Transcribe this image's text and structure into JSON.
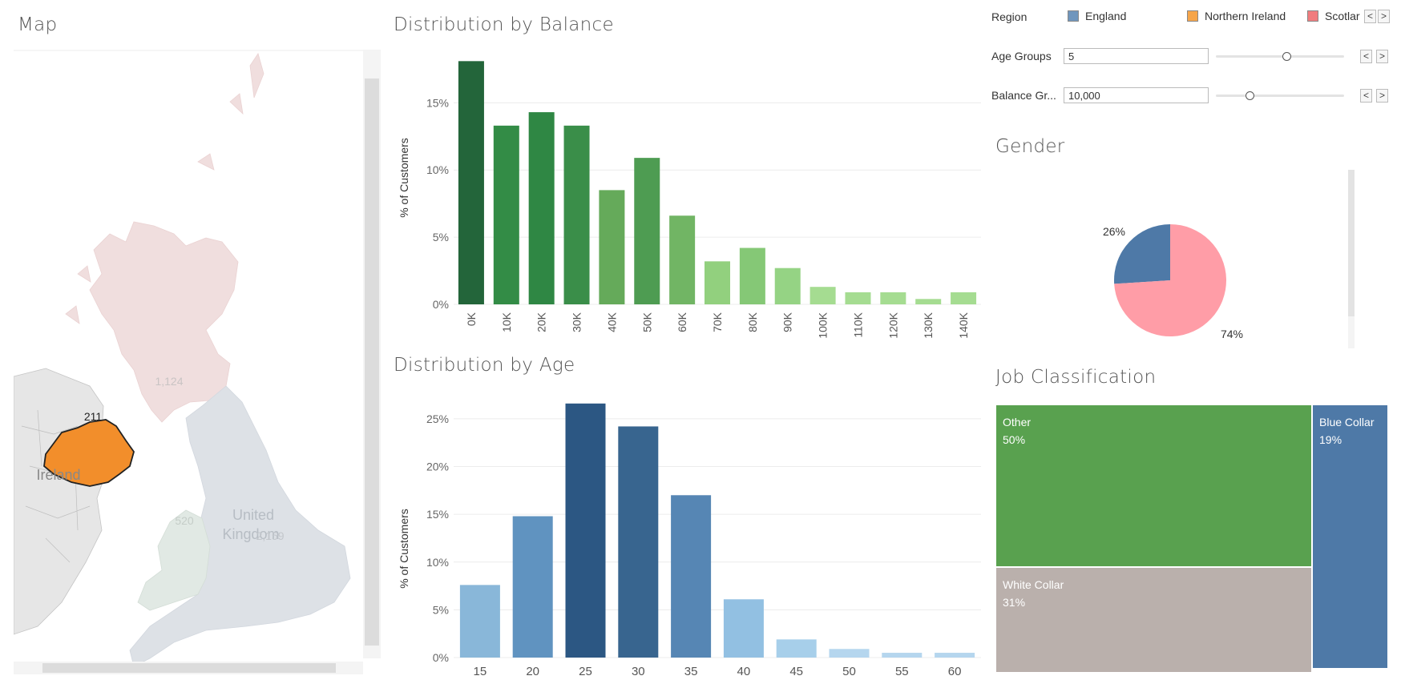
{
  "map": {
    "title": "Map",
    "labels": {
      "scotland": "1,124",
      "northern_ireland": "211",
      "wales": "520",
      "england": "2,159",
      "ireland": "Ireland",
      "uk_line1": "United",
      "uk_line2": "Kingdom"
    },
    "colors": {
      "highlight": "#f28e2b",
      "muted_scotland": "#f0dede",
      "muted_england": "#dde1e6",
      "muted_wales": "#e1e9e4",
      "land": "#e8e8e8"
    }
  },
  "controls": {
    "region_label": "Region",
    "legend": [
      {
        "label": "England",
        "color": "#7096bd"
      },
      {
        "label": "Northern Ireland",
        "color": "#f6a54a"
      },
      {
        "label": "Scotlar",
        "color": "#f07c7e"
      }
    ],
    "age_groups": {
      "label": "Age Groups",
      "value": "5",
      "level": 0.55
    },
    "balance_groups": {
      "label": "Balance Gr...",
      "value": "10,000",
      "level": 0.26
    },
    "prev_icon": "<",
    "next_icon": ">"
  },
  "balance_chart": {
    "title": "Distribution by Balance",
    "ylabel": "% of Customers",
    "yticks": [
      "0%",
      "5%",
      "10%",
      "15%"
    ]
  },
  "age_chart": {
    "title": "Distribution by Age",
    "ylabel": "% of Customers",
    "yticks": [
      "0%",
      "5%",
      "10%",
      "15%",
      "20%",
      "25%"
    ]
  },
  "gender": {
    "title": "Gender",
    "slices": [
      {
        "label": "26%",
        "value": 26,
        "color": "#4e79a7"
      },
      {
        "label": "74%",
        "value": 74,
        "color": "#ff9da7"
      }
    ]
  },
  "job": {
    "title": "Job Classification",
    "cells": [
      {
        "name": "Other",
        "pct": "50%",
        "color": "#59a14f"
      },
      {
        "name": "White Collar",
        "pct": "31%",
        "color": "#bab0ac"
      },
      {
        "name": "Blue Collar",
        "pct": "19%",
        "color": "#4e79a7"
      }
    ]
  },
  "chart_data": [
    {
      "type": "bar",
      "title": "Distribution by Balance",
      "xlabel": "",
      "ylabel": "% of Customers",
      "ylim": [
        0,
        18
      ],
      "categories": [
        "0K",
        "10K",
        "20K",
        "30K",
        "40K",
        "50K",
        "60K",
        "70K",
        "80K",
        "90K",
        "100K",
        "110K",
        "120K",
        "130K",
        "140K"
      ],
      "values": [
        18.1,
        13.3,
        14.3,
        13.3,
        8.5,
        10.9,
        6.6,
        3.2,
        4.2,
        2.7,
        1.3,
        0.9,
        0.9,
        0.4,
        0.9
      ],
      "colors": [
        "#23653a",
        "#338c46",
        "#2f8744",
        "#3a8e49",
        "#65aa5a",
        "#4e9c52",
        "#71b564",
        "#92d07e",
        "#85c876",
        "#95d384",
        "#a5dc91",
        "#a5dc91",
        "#a5dc91",
        "#a5dc91",
        "#a5dc91"
      ],
      "grid": true
    },
    {
      "type": "bar",
      "title": "Distribution by Age",
      "xlabel": "",
      "ylabel": "% of Customers",
      "ylim": [
        0,
        26.5
      ],
      "categories": [
        "15",
        "20",
        "25",
        "30",
        "35",
        "40",
        "45",
        "50",
        "55",
        "60"
      ],
      "values": [
        7.6,
        14.8,
        26.6,
        24.2,
        17.0,
        6.1,
        1.9,
        0.9,
        0.5,
        0.5
      ],
      "colors": [
        "#89b7d9",
        "#6093c0",
        "#2c5783",
        "#38658f",
        "#5686b4",
        "#92c0e2",
        "#a7cfea",
        "#b5d6ee",
        "#b5d6ee",
        "#b5d6ee"
      ],
      "grid": true
    },
    {
      "type": "pie",
      "title": "Gender",
      "values": [
        26,
        74
      ],
      "labels": [
        "26%",
        "74%"
      ]
    },
    {
      "type": "treemap",
      "title": "Job Classification",
      "categories": [
        "Other",
        "White Collar",
        "Blue Collar"
      ],
      "values": [
        50,
        31,
        19
      ]
    }
  ]
}
